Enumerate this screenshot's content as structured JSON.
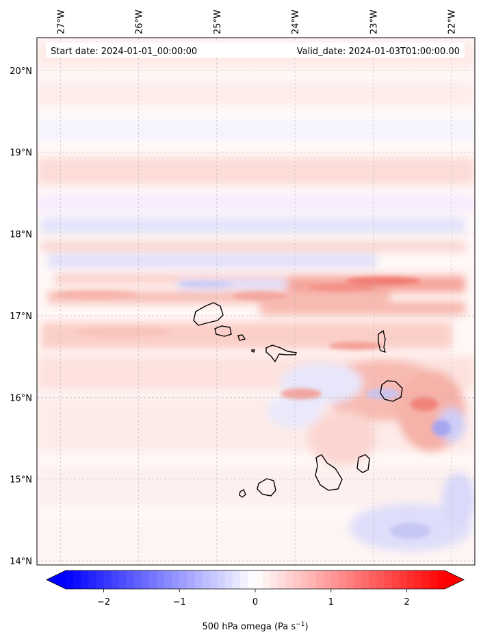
{
  "header": {
    "start_label": "Start date: 2024-01-01_00:00:00",
    "valid_label": "Valid_date: 2024-01-03T01:00:00.00"
  },
  "map": {
    "lon_labels": [
      "27°W",
      "26°W",
      "25°W",
      "24°W",
      "23°W",
      "22°W"
    ],
    "lat_labels": [
      "20°N",
      "19°N",
      "18°N",
      "17°N",
      "16°N",
      "15°N",
      "14°N"
    ],
    "lon_range": [
      -27.3,
      -21.7
    ],
    "lat_range": [
      13.95,
      20.4
    ],
    "gridlines": true
  },
  "colorbar": {
    "ticks": [
      "−2",
      "−1",
      "0",
      "1",
      "2"
    ],
    "tick_values": [
      -2,
      -1,
      0,
      1,
      2
    ],
    "range": [
      -2.5,
      2.5
    ],
    "low_color": "#0000ff",
    "mid_color": "#ffffff",
    "high_color": "#ff0000",
    "extend": "both",
    "label": "500 hPa omega (Pa s",
    "label_exp": "−1",
    "label_close": ")"
  }
}
